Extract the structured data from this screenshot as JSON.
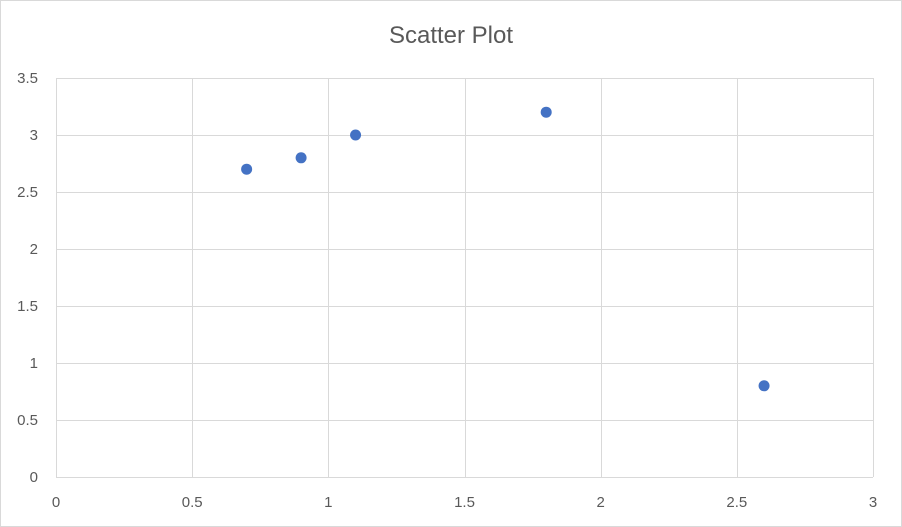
{
  "chart_data": {
    "type": "scatter",
    "title": "Scatter Plot",
    "xlabel": "",
    "ylabel": "",
    "xlim": [
      0,
      3
    ],
    "ylim": [
      0,
      3.5
    ],
    "x_ticks": [
      0,
      0.5,
      1,
      1.5,
      2,
      2.5,
      3
    ],
    "y_ticks": [
      0,
      0.5,
      1,
      1.5,
      2,
      2.5,
      3,
      3.5
    ],
    "x_tick_labels": [
      "0",
      "0.5",
      "1",
      "1.5",
      "2",
      "2.5",
      "3"
    ],
    "y_tick_labels": [
      "0",
      "0.5",
      "1",
      "1.5",
      "2",
      "2.5",
      "3",
      "3.5"
    ],
    "grid": true,
    "legend": "none",
    "series": [
      {
        "color": "#4472c4",
        "points": [
          {
            "x": 0.7,
            "y": 2.7
          },
          {
            "x": 0.9,
            "y": 2.8
          },
          {
            "x": 1.1,
            "y": 3.0
          },
          {
            "x": 1.8,
            "y": 3.2
          },
          {
            "x": 2.6,
            "y": 0.8
          }
        ]
      }
    ],
    "gridline_color": "#d9d9d9"
  }
}
